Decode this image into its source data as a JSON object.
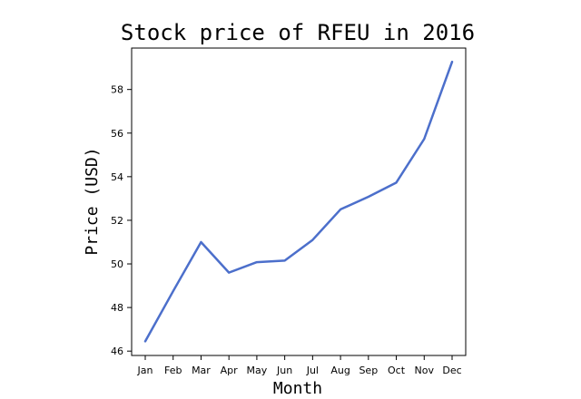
{
  "chart_data": {
    "type": "line",
    "title": "Stock price of RFEU in 2016",
    "xlabel": "Month",
    "ylabel": "Price (USD)",
    "categories": [
      "Jan",
      "Feb",
      "Mar",
      "Apr",
      "May",
      "Jun",
      "Jul",
      "Aug",
      "Sep",
      "Oct",
      "Nov",
      "Dec"
    ],
    "series": [
      {
        "values": [
          46.45,
          48.75,
          51.0,
          49.6,
          50.08,
          50.15,
          51.1,
          52.5,
          53.08,
          53.73,
          55.73,
          59.27
        ],
        "color": "#4c6fcb"
      }
    ],
    "yticks": [
      46,
      48,
      50,
      52,
      54,
      56,
      58
    ],
    "ylim": [
      45.8,
      59.9
    ],
    "grid": false,
    "legend": "none"
  }
}
